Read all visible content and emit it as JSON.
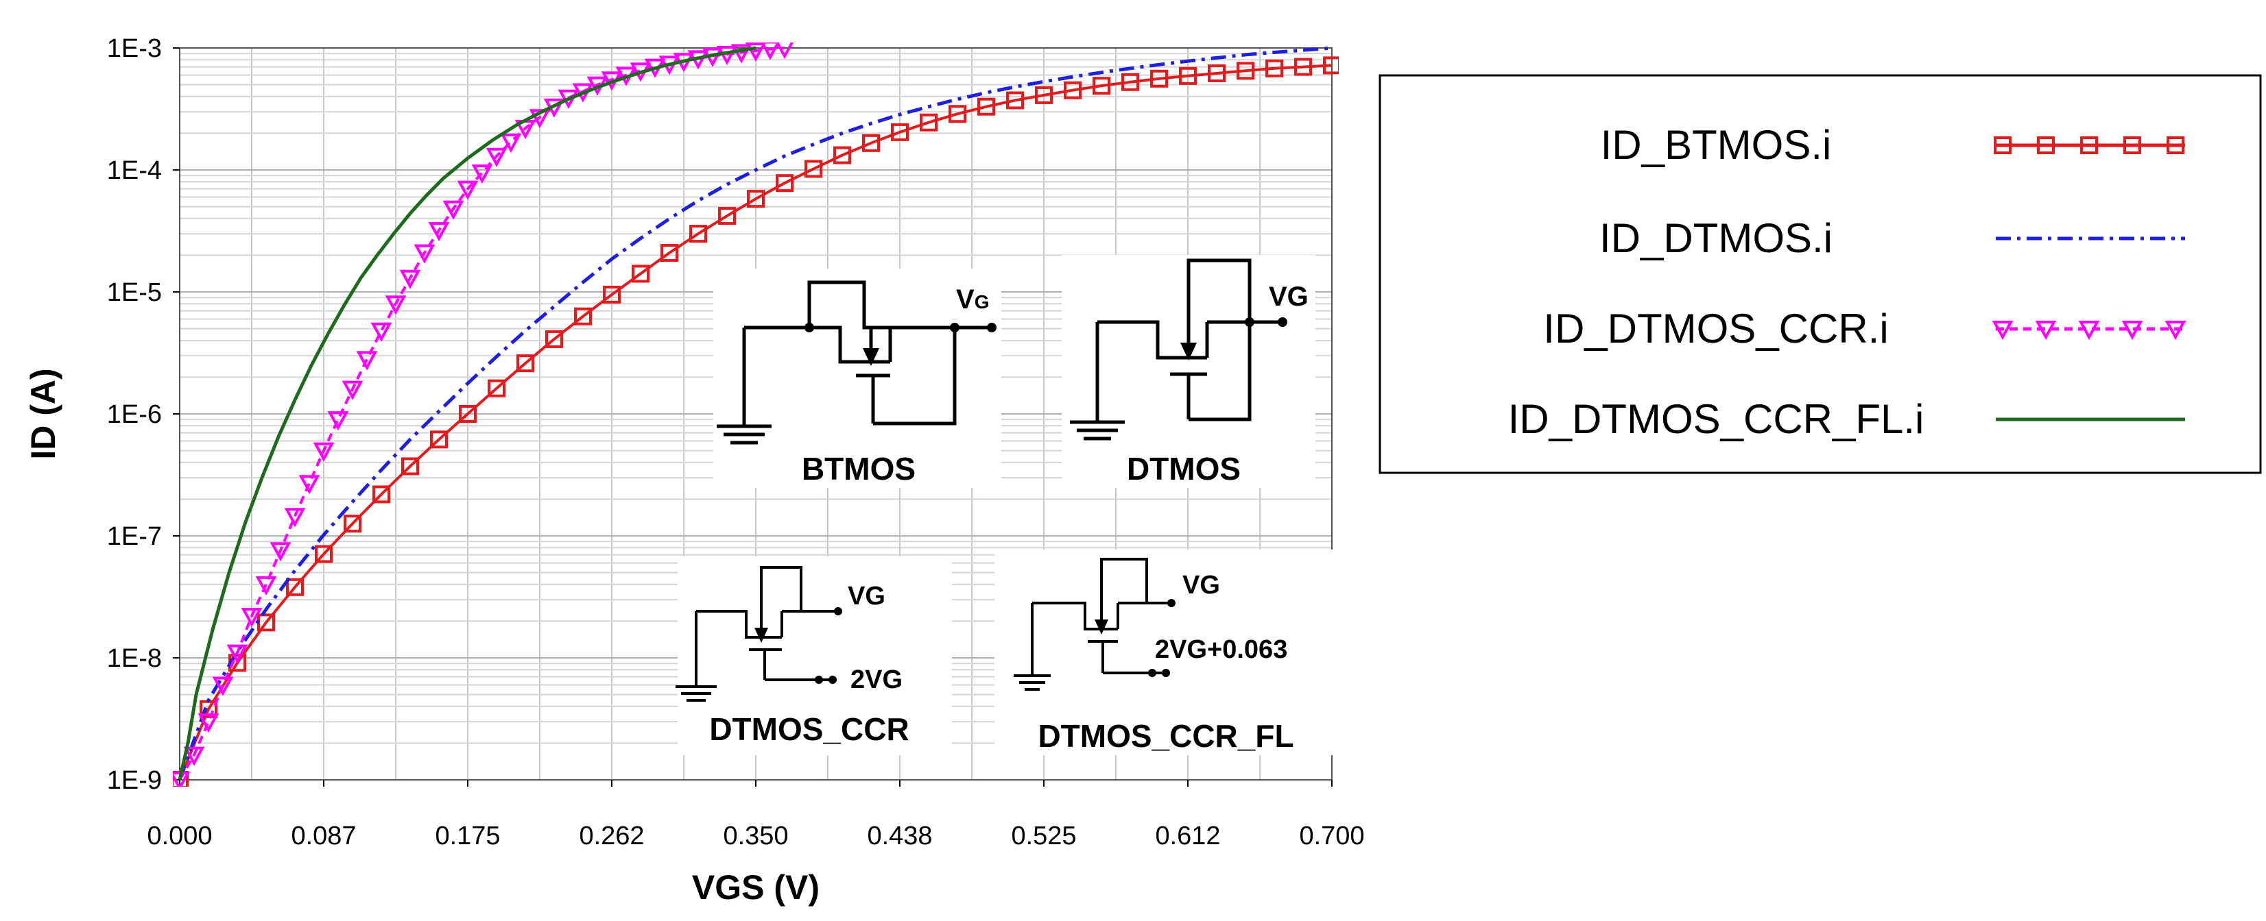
{
  "chart_data": {
    "type": "line",
    "xlabel": "VGS (V)",
    "ylabel": "ID (A)",
    "xlim": [
      0,
      0.7
    ],
    "ylim": [
      1e-09,
      0.001
    ],
    "yscale": "log",
    "grid": true,
    "x_ticks": [
      "0.000",
      "0.087",
      "0.175",
      "0.262",
      "0.350",
      "0.438",
      "0.525",
      "0.612",
      "0.700"
    ],
    "y_ticks": [
      "1E-9",
      "1E-8",
      "1E-7",
      "1E-6",
      "1E-5",
      "1E-4",
      "1E-3"
    ],
    "legend_position": "right",
    "series": [
      {
        "name": "ID_BTMOS.i",
        "color": "#e41a1c",
        "marker": "square",
        "line": "solid",
        "x": [
          0.0,
          0.0175,
          0.035,
          0.0525,
          0.07,
          0.0875,
          0.105,
          0.1225,
          0.14,
          0.1575,
          0.175,
          0.1925,
          0.21,
          0.2275,
          0.245,
          0.2625,
          0.28,
          0.2975,
          0.315,
          0.3325,
          0.35,
          0.3675,
          0.385,
          0.4025,
          0.42,
          0.4375,
          0.455,
          0.4725,
          0.49,
          0.5075,
          0.525,
          0.5425,
          0.56,
          0.5775,
          0.595,
          0.6125,
          0.63,
          0.6475,
          0.665,
          0.6825,
          0.7
        ],
        "y": [
          1e-09,
          3.8e-09,
          9.1e-09,
          1.95e-08,
          3.8e-08,
          7.1e-08,
          1.26e-07,
          2.19e-07,
          3.72e-07,
          6.17e-07,
          1e-06,
          1.62e-06,
          2.6e-06,
          4.1e-06,
          6.3e-06,
          9.5e-06,
          1.41e-05,
          2.09e-05,
          3e-05,
          4.2e-05,
          5.8e-05,
          7.8e-05,
          0.000102,
          0.000132,
          0.000166,
          0.000204,
          0.000245,
          0.000288,
          0.00033,
          0.000372,
          0.00041,
          0.00045,
          0.00049,
          0.000525,
          0.00056,
          0.00059,
          0.00062,
          0.00065,
          0.00068,
          0.0007,
          0.00072
        ]
      },
      {
        "name": "ID_DTMOS.i",
        "color": "#1f1fe0",
        "marker": "none",
        "line": "dash-dot",
        "x": [
          0.0,
          0.0175,
          0.035,
          0.0525,
          0.07,
          0.0875,
          0.105,
          0.1225,
          0.14,
          0.1575,
          0.175,
          0.1925,
          0.21,
          0.2275,
          0.245,
          0.2625,
          0.28,
          0.2975,
          0.315,
          0.3325,
          0.35,
          0.3675,
          0.385,
          0.4025,
          0.42,
          0.4375,
          0.455,
          0.4725,
          0.49,
          0.5075,
          0.525,
          0.5425,
          0.56,
          0.5775,
          0.595,
          0.6125,
          0.63,
          0.6475,
          0.665,
          0.6825,
          0.7
        ],
        "y": [
          1e-09,
          4.5e-09,
          1.12e-08,
          2.5e-08,
          5.2e-08,
          1.02e-07,
          1.9e-07,
          3.47e-07,
          6.17e-07,
          1.05e-06,
          1.78e-06,
          2.95e-06,
          4.8e-06,
          7.6e-06,
          1.2e-05,
          1.86e-05,
          2.75e-05,
          3.98e-05,
          5.6e-05,
          7.6e-05,
          0.0001,
          0.00013,
          0.000162,
          0.0002,
          0.00024,
          0.000285,
          0.00033,
          0.00038,
          0.00043,
          0.00048,
          0.00053,
          0.00058,
          0.00063,
          0.00068,
          0.00073,
          0.00078,
          0.00083,
          0.00088,
          0.00092,
          0.00096,
          0.001
        ]
      },
      {
        "name": "ID_DTMOS_CCR.i",
        "color": "#ff00ff",
        "marker": "triangle-down",
        "line": "dashed",
        "x": [
          0.0,
          0.00875,
          0.0175,
          0.02625,
          0.035,
          0.04375,
          0.0525,
          0.06125,
          0.07,
          0.07875,
          0.0875,
          0.09625,
          0.105,
          0.11375,
          0.1225,
          0.13125,
          0.14,
          0.14875,
          0.1575,
          0.16625,
          0.175,
          0.18375,
          0.1925,
          0.20125,
          0.21,
          0.21875,
          0.2275,
          0.23625,
          0.245,
          0.25375,
          0.2625,
          0.27125,
          0.28,
          0.28875,
          0.2975,
          0.30625,
          0.315,
          0.32375,
          0.3325,
          0.34125,
          0.35,
          0.35875,
          0.3675
        ],
        "y": [
          1e-09,
          1.6e-09,
          3e-09,
          6e-09,
          1.1e-08,
          2.2e-08,
          4e-08,
          7.6e-08,
          1.45e-07,
          2.7e-07,
          5e-07,
          9e-07,
          1.6e-06,
          2.8e-06,
          4.8e-06,
          8e-06,
          1.3e-05,
          2.1e-05,
          3.2e-05,
          4.8e-05,
          7e-05,
          9.5e-05,
          0.00013,
          0.00017,
          0.00022,
          0.00027,
          0.00033,
          0.00039,
          0.00044,
          0.0005,
          0.00055,
          0.0006,
          0.00065,
          0.0007,
          0.00074,
          0.00078,
          0.00082,
          0.00086,
          0.00089,
          0.00092,
          0.00095,
          0.00098,
          0.001
        ]
      },
      {
        "name": "ID_DTMOS_CCR_FL.i",
        "color": "#1e6b1e",
        "marker": "none",
        "line": "solid",
        "x": [
          0.0,
          0.005,
          0.01,
          0.02,
          0.03,
          0.04,
          0.05,
          0.06,
          0.07,
          0.08,
          0.09,
          0.1,
          0.11,
          0.12,
          0.13,
          0.14,
          0.15,
          0.16,
          0.175,
          0.19,
          0.205,
          0.22,
          0.235,
          0.25,
          0.265,
          0.28,
          0.295,
          0.31,
          0.325,
          0.34,
          0.35
        ],
        "y": [
          1e-09,
          2e-09,
          5e-09,
          1.7e-08,
          5e-08,
          1.3e-07,
          3e-07,
          6.5e-07,
          1.3e-06,
          2.5e-06,
          4.5e-06,
          7.8e-06,
          1.3e-05,
          2e-05,
          3e-05,
          4.4e-05,
          6.2e-05,
          8.5e-05,
          0.000125,
          0.000175,
          0.000235,
          0.0003,
          0.000375,
          0.000455,
          0.00054,
          0.00063,
          0.00072,
          0.0008,
          0.00088,
          0.00095,
          0.001
        ]
      }
    ],
    "annotations": {
      "btmos": {
        "caption": "BTMOS",
        "vg": "V",
        "vg_sub": "G"
      },
      "dtmos": {
        "caption": "DTMOS",
        "vg": "VG"
      },
      "dtmos_ccr": {
        "caption": "DTMOS_CCR",
        "vg": "VG",
        "bias": "2VG"
      },
      "dtmos_ccr_fl": {
        "caption": "DTMOS_CCR_FL",
        "vg": "VG",
        "bias": "2VG+0.063"
      }
    }
  }
}
